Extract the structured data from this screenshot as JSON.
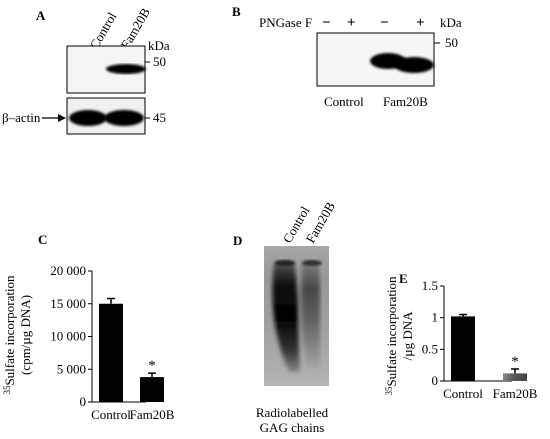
{
  "panelA": {
    "letter": "A",
    "lanes": [
      "Control",
      "Fam20B"
    ],
    "kda": "kDa",
    "marker_top": "50",
    "marker_bottom": "45",
    "loading_label": "β–actin"
  },
  "panelB": {
    "letter": "B",
    "treatment": "PNGase F",
    "signs": [
      "−",
      "+",
      "−",
      "+"
    ],
    "kda": "kDa",
    "marker": "50",
    "groups": [
      "Control",
      "Fam20B"
    ]
  },
  "panelD": {
    "letter": "D",
    "lanes": [
      "Control",
      "Fam20B"
    ],
    "caption_line1": "Radiolabelled",
    "caption_line2": "GAG chains"
  },
  "chart_data": [
    {
      "panel": "C",
      "type": "bar",
      "categories": [
        "Control",
        "Fam20B"
      ],
      "values": [
        15000,
        3800
      ],
      "errors": [
        800,
        600
      ],
      "significance": [
        "",
        "*"
      ],
      "ylabel_line1": "35Sulfate incorporation",
      "ylabel_line2": "(cpm/µg DNA)",
      "ylim": [
        0,
        20000
      ],
      "yticks": [
        0,
        5000,
        10000,
        15000,
        20000
      ],
      "ytick_labels": [
        "0",
        "5 000",
        "10 000",
        "15 000",
        "20 000"
      ],
      "bar_colors": [
        "#000000",
        "#000000"
      ]
    },
    {
      "panel": "E",
      "type": "bar",
      "categories": [
        "Control",
        "Fam20B"
      ],
      "values": [
        1.02,
        0.12
      ],
      "errors": [
        0.03,
        0.07
      ],
      "significance": [
        "",
        "*"
      ],
      "ylabel_line1": "35Sulfate incorporation",
      "ylabel_line2": "/µg DNA",
      "ylim": [
        0,
        1.5
      ],
      "yticks": [
        0,
        0.5,
        1,
        1.5
      ],
      "ytick_labels": [
        "0",
        "0.5",
        "1",
        "1.5"
      ],
      "bar_colors": [
        "#000000",
        "#666666"
      ]
    }
  ]
}
